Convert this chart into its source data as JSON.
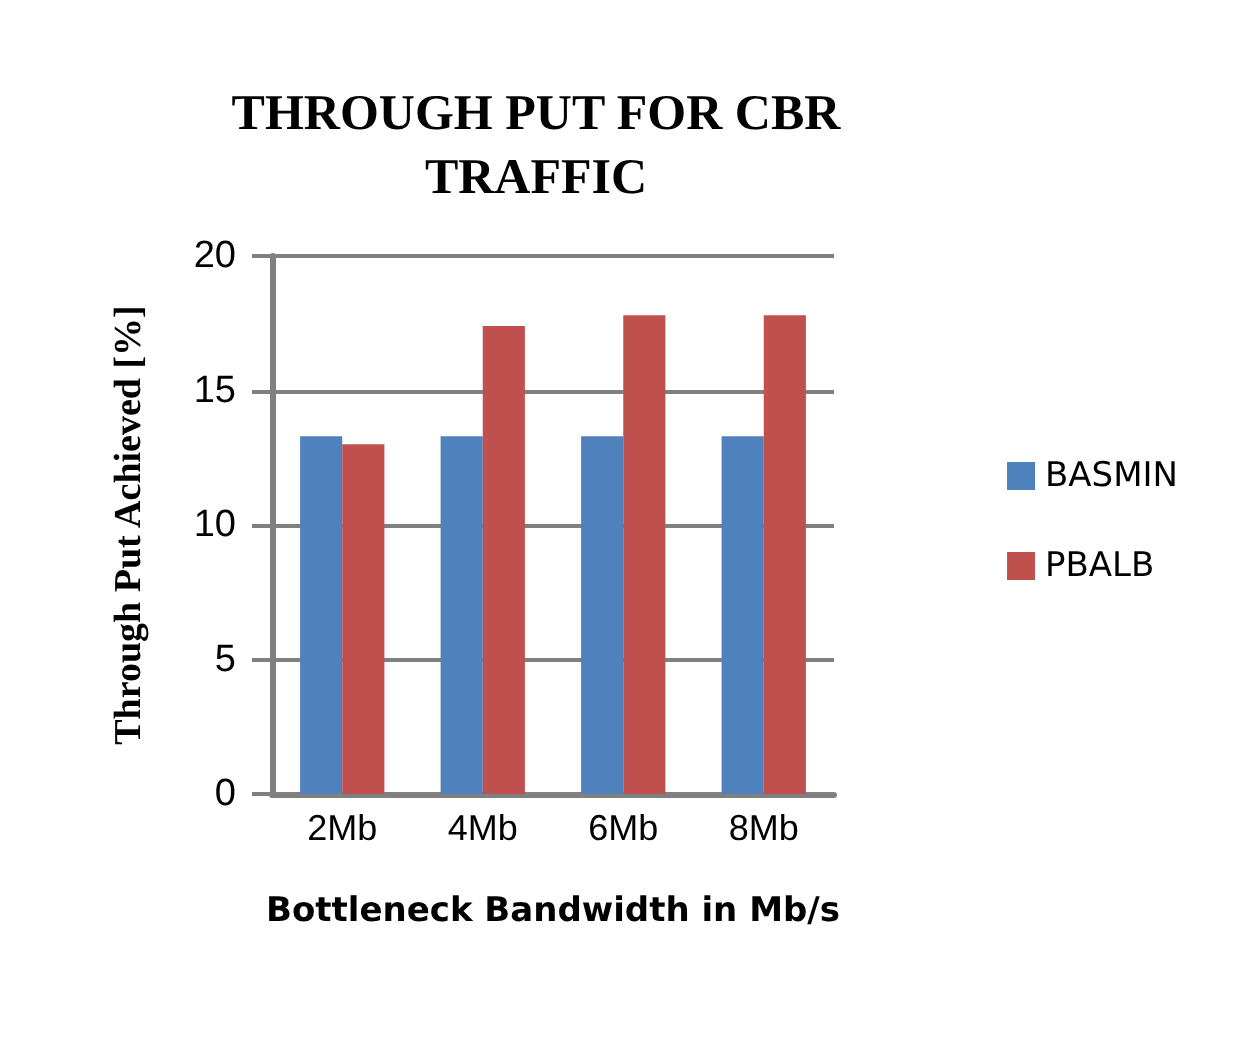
{
  "chart_data": {
    "type": "bar",
    "title": "THROUGH PUT FOR CBR\nTRAFFIC",
    "xlabel": "Bottleneck Bandwidth in Mb/s",
    "ylabel": "Through Put Achieved [%]",
    "categories": [
      "2Mb",
      "4Mb",
      "6Mb",
      "8Mb"
    ],
    "series": [
      {
        "name": "BASMIN",
        "color": "#4f81bd",
        "values": [
          13.3,
          13.3,
          13.3,
          13.3
        ]
      },
      {
        "name": "PBALB",
        "color": "#c0504d",
        "values": [
          13.0,
          17.4,
          17.8,
          17.8
        ]
      }
    ],
    "ylim": [
      0,
      20
    ],
    "yticks": [
      0,
      5,
      10,
      15,
      20
    ],
    "grid": "y",
    "legend": "right"
  }
}
